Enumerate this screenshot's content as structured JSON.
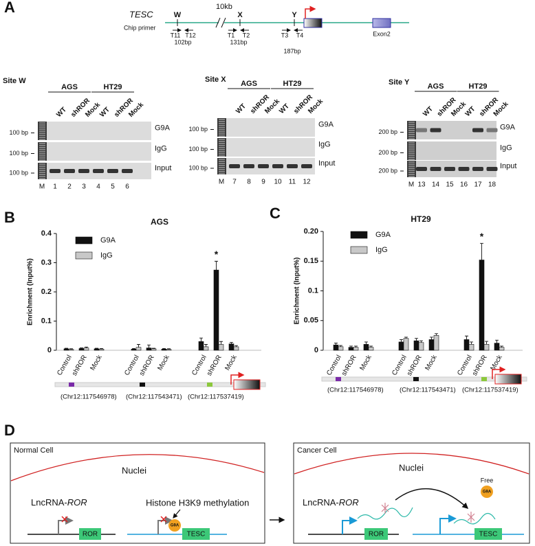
{
  "panel_labels": [
    "A",
    "B",
    "C",
    "D"
  ],
  "gene_map": {
    "gene": "TESC",
    "primer_label": "Chip primer",
    "gap": "10kb",
    "exon": "Exon2",
    "sites": [
      {
        "name": "W",
        "primers": [
          "T11",
          "T12"
        ],
        "size": "102bp"
      },
      {
        "name": "X",
        "primers": [
          "T1",
          "T2"
        ],
        "size": "131bp"
      },
      {
        "name": "Y",
        "primers": [
          "T3",
          "T4"
        ],
        "size": "187bp"
      }
    ]
  },
  "gels": [
    {
      "site": "Site W",
      "cell_lines": [
        "AGS",
        "HT29"
      ],
      "lanes": [
        "WT",
        "shROR",
        "Mock",
        "WT",
        "shROR",
        "Mock"
      ],
      "rows": [
        {
          "label": "G9A",
          "marker": "100 bp"
        },
        {
          "label": "IgG",
          "marker": "100 bp"
        },
        {
          "label": "Input",
          "marker": "100 bp"
        }
      ],
      "ladder": "M",
      "lane_numbers": [
        "1",
        "2",
        "3",
        "4",
        "5",
        "6"
      ]
    },
    {
      "site": "Site X",
      "cell_lines": [
        "AGS",
        "HT29"
      ],
      "lanes": [
        "WT",
        "shROR",
        "Mock",
        "WT",
        "shROR",
        "Mock"
      ],
      "rows": [
        {
          "label": "G9A",
          "marker": "100 bp"
        },
        {
          "label": "IgG",
          "marker": "100 bp"
        },
        {
          "label": "Input",
          "marker": "100 bp"
        }
      ],
      "ladder": "M",
      "lane_numbers": [
        "7",
        "8",
        "9",
        "10",
        "11",
        "12"
      ]
    },
    {
      "site": "Site Y",
      "cell_lines": [
        "AGS",
        "HT29"
      ],
      "lanes": [
        "WT",
        "shROR",
        "Mock",
        "WT",
        "shROR",
        "Mock"
      ],
      "rows": [
        {
          "label": "G9A",
          "marker": "200 bp"
        },
        {
          "label": "IgG",
          "marker": "200 bp"
        },
        {
          "label": "Input",
          "marker": "200 bp"
        }
      ],
      "ladder": "M",
      "lane_numbers": [
        "13",
        "14",
        "15",
        "16",
        "17",
        "18"
      ]
    }
  ],
  "chart_data": [
    {
      "type": "bar",
      "title": "AGS",
      "y_label": "Enrichment (Input%)",
      "categories": [
        "Control",
        "shROR",
        "Mock",
        "Control",
        "shROR",
        "Mock",
        "Control",
        "shROR",
        "Mock"
      ],
      "series": [
        {
          "name": "G9A",
          "color": "#111111",
          "values": [
            0.005,
            0.006,
            0.005,
            0.004,
            0.008,
            0.004,
            0.03,
            0.275,
            0.022
          ],
          "errors": [
            0.002,
            0.002,
            0.002,
            0.002,
            0.01,
            0.002,
            0.012,
            0.03,
            0.005
          ]
        },
        {
          "name": "IgG",
          "color": "#c8c8c8",
          "values": [
            0.003,
            0.008,
            0.004,
            0.01,
            0.005,
            0.003,
            0.012,
            0.02,
            0.012
          ],
          "errors": [
            0.002,
            0.003,
            0.002,
            0.01,
            0.002,
            0.002,
            0.008,
            0.01,
            0.004
          ]
        }
      ],
      "ylim": [
        0,
        0.4
      ],
      "yticks": [
        0,
        0.1,
        0.2,
        0.3,
        0.4
      ],
      "annotation": "*",
      "track_labels": [
        "(Chr12:117546978)",
        "(Chr12:117543471)",
        "(Chr12:117537419)"
      ]
    },
    {
      "type": "bar",
      "title": "HT29",
      "y_label": "Enrichment (Input%)",
      "categories": [
        "Control",
        "shROR",
        "Mock",
        "Control",
        "shROR",
        "Mock",
        "Control",
        "shROR",
        "Mock"
      ],
      "series": [
        {
          "name": "G9A",
          "color": "#111111",
          "values": [
            0.009,
            0.005,
            0.01,
            0.014,
            0.016,
            0.018,
            0.018,
            0.152,
            0.012
          ],
          "errors": [
            0.003,
            0.002,
            0.004,
            0.004,
            0.004,
            0.004,
            0.006,
            0.028,
            0.005
          ]
        },
        {
          "name": "IgG",
          "color": "#c8c8c8",
          "values": [
            0.006,
            0.005,
            0.005,
            0.02,
            0.013,
            0.025,
            0.01,
            0.01,
            0.005
          ],
          "errors": [
            0.002,
            0.002,
            0.002,
            0.002,
            0.003,
            0.003,
            0.004,
            0.005,
            0.002
          ]
        }
      ],
      "ylim": [
        0,
        0.2
      ],
      "yticks": [
        0,
        0.05,
        0.1,
        0.15,
        {
          "value": 0.2,
          "label": "0.20"
        }
      ],
      "annotation": "*",
      "track_labels": [
        "(Chr12:117546978)",
        "(Chr12:117543471)",
        "(Chr12:117537419)"
      ]
    }
  ],
  "diagram": {
    "normal": {
      "title": "Normal Cell",
      "nuclei": "Nuclei",
      "lnc_prefix": "LncRNA-",
      "lnc_name": "ROR",
      "methylation": "Histone H3K9 methylation",
      "ror_box": "ROR",
      "tesc_box": "TESC",
      "g9a": "G9A"
    },
    "cancer": {
      "title": "Cancer Cell",
      "nuclei": "Nuclei",
      "lnc_prefix": "LncRNA-",
      "lnc_name": "ROR",
      "free": "Free",
      "g9a": "G9A",
      "ror_box": "ROR",
      "tesc_box": "TESC"
    }
  }
}
